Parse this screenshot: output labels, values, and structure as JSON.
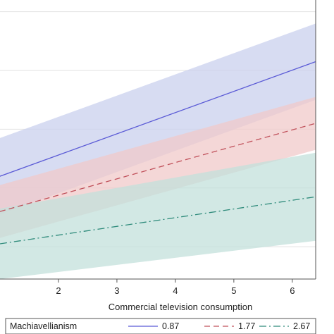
{
  "chart_data": {
    "type": "line",
    "xlabel": "Commercial television consumption",
    "ylabel": "",
    "xlim": [
      1.0,
      6.4
    ],
    "ylim": [
      0.45,
      5.2
    ],
    "x_ticks": [
      2,
      3,
      4,
      5,
      6
    ],
    "y_gridlines": [
      1.0,
      2.0,
      3.0,
      4.0,
      5.0
    ],
    "grid": true,
    "legend": {
      "title": "Machiavellianism",
      "placement": "bottom",
      "entries": [
        "0.87",
        "1.77",
        "2.67"
      ]
    },
    "series": [
      {
        "name": "0.87",
        "color": "#5b5bd6",
        "band_color": "#c9d0ee",
        "dash": "solid",
        "x": [
          1.0,
          6.4
        ],
        "y": [
          2.2,
          4.15
        ],
        "ci_upper": [
          2.85,
          4.8
        ],
        "ci_lower": [
          1.55,
          3.5
        ]
      },
      {
        "name": "1.77",
        "color": "#c0505a",
        "band_color": "#f0c9c9",
        "dash": "dashed",
        "x": [
          1.0,
          6.4
        ],
        "y": [
          1.6,
          3.1
        ],
        "ci_upper": [
          2.05,
          3.55
        ],
        "ci_lower": [
          1.15,
          2.65
        ]
      },
      {
        "name": "2.67",
        "color": "#2d8a7a",
        "band_color": "#c3e0db",
        "dash": "dashdot",
        "x": [
          1.0,
          6.4
        ],
        "y": [
          1.05,
          1.85
        ],
        "ci_upper": [
          1.65,
          2.6
        ],
        "ci_lower": [
          0.45,
          1.1
        ]
      }
    ]
  }
}
